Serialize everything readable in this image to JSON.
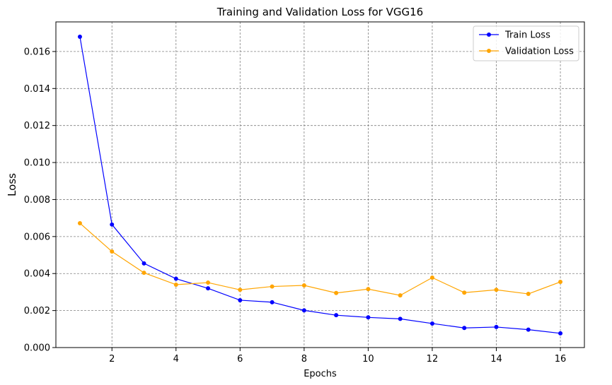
{
  "chart_data": {
    "type": "line",
    "title": "Training and Validation Loss for VGG16",
    "xlabel": "Epochs",
    "ylabel": "Loss",
    "x": [
      1,
      2,
      3,
      4,
      5,
      6,
      7,
      8,
      9,
      10,
      11,
      12,
      13,
      14,
      15,
      16
    ],
    "xlim": [
      0.25,
      16.75
    ],
    "ylim": [
      0,
      0.0176
    ],
    "xticks": [
      2,
      4,
      6,
      8,
      10,
      12,
      14,
      16
    ],
    "xtick_labels": [
      "2",
      "4",
      "6",
      "8",
      "10",
      "12",
      "14",
      "16"
    ],
    "yticks": [
      0,
      0.002,
      0.004,
      0.006,
      0.008,
      0.01,
      0.012,
      0.014,
      0.016
    ],
    "ytick_labels": [
      "0.000",
      "0.002",
      "0.004",
      "0.006",
      "0.008",
      "0.010",
      "0.012",
      "0.014",
      "0.016"
    ],
    "grid": true,
    "grid_style": "dashed",
    "legend_position": "top-right",
    "series": [
      {
        "name": "Train Loss",
        "color": "#0000ff",
        "values": [
          0.0168,
          0.00665,
          0.00455,
          0.00372,
          0.0032,
          0.00256,
          0.00245,
          0.00201,
          0.00175,
          0.00163,
          0.00155,
          0.0013,
          0.00106,
          0.00111,
          0.00097,
          0.00077
        ]
      },
      {
        "name": "Validation Loss",
        "color": "#ffa500",
        "values": [
          0.00672,
          0.00519,
          0.00404,
          0.0034,
          0.00351,
          0.00312,
          0.0033,
          0.00336,
          0.00295,
          0.00316,
          0.00282,
          0.00378,
          0.00297,
          0.00312,
          0.0029,
          0.00355
        ]
      }
    ]
  }
}
